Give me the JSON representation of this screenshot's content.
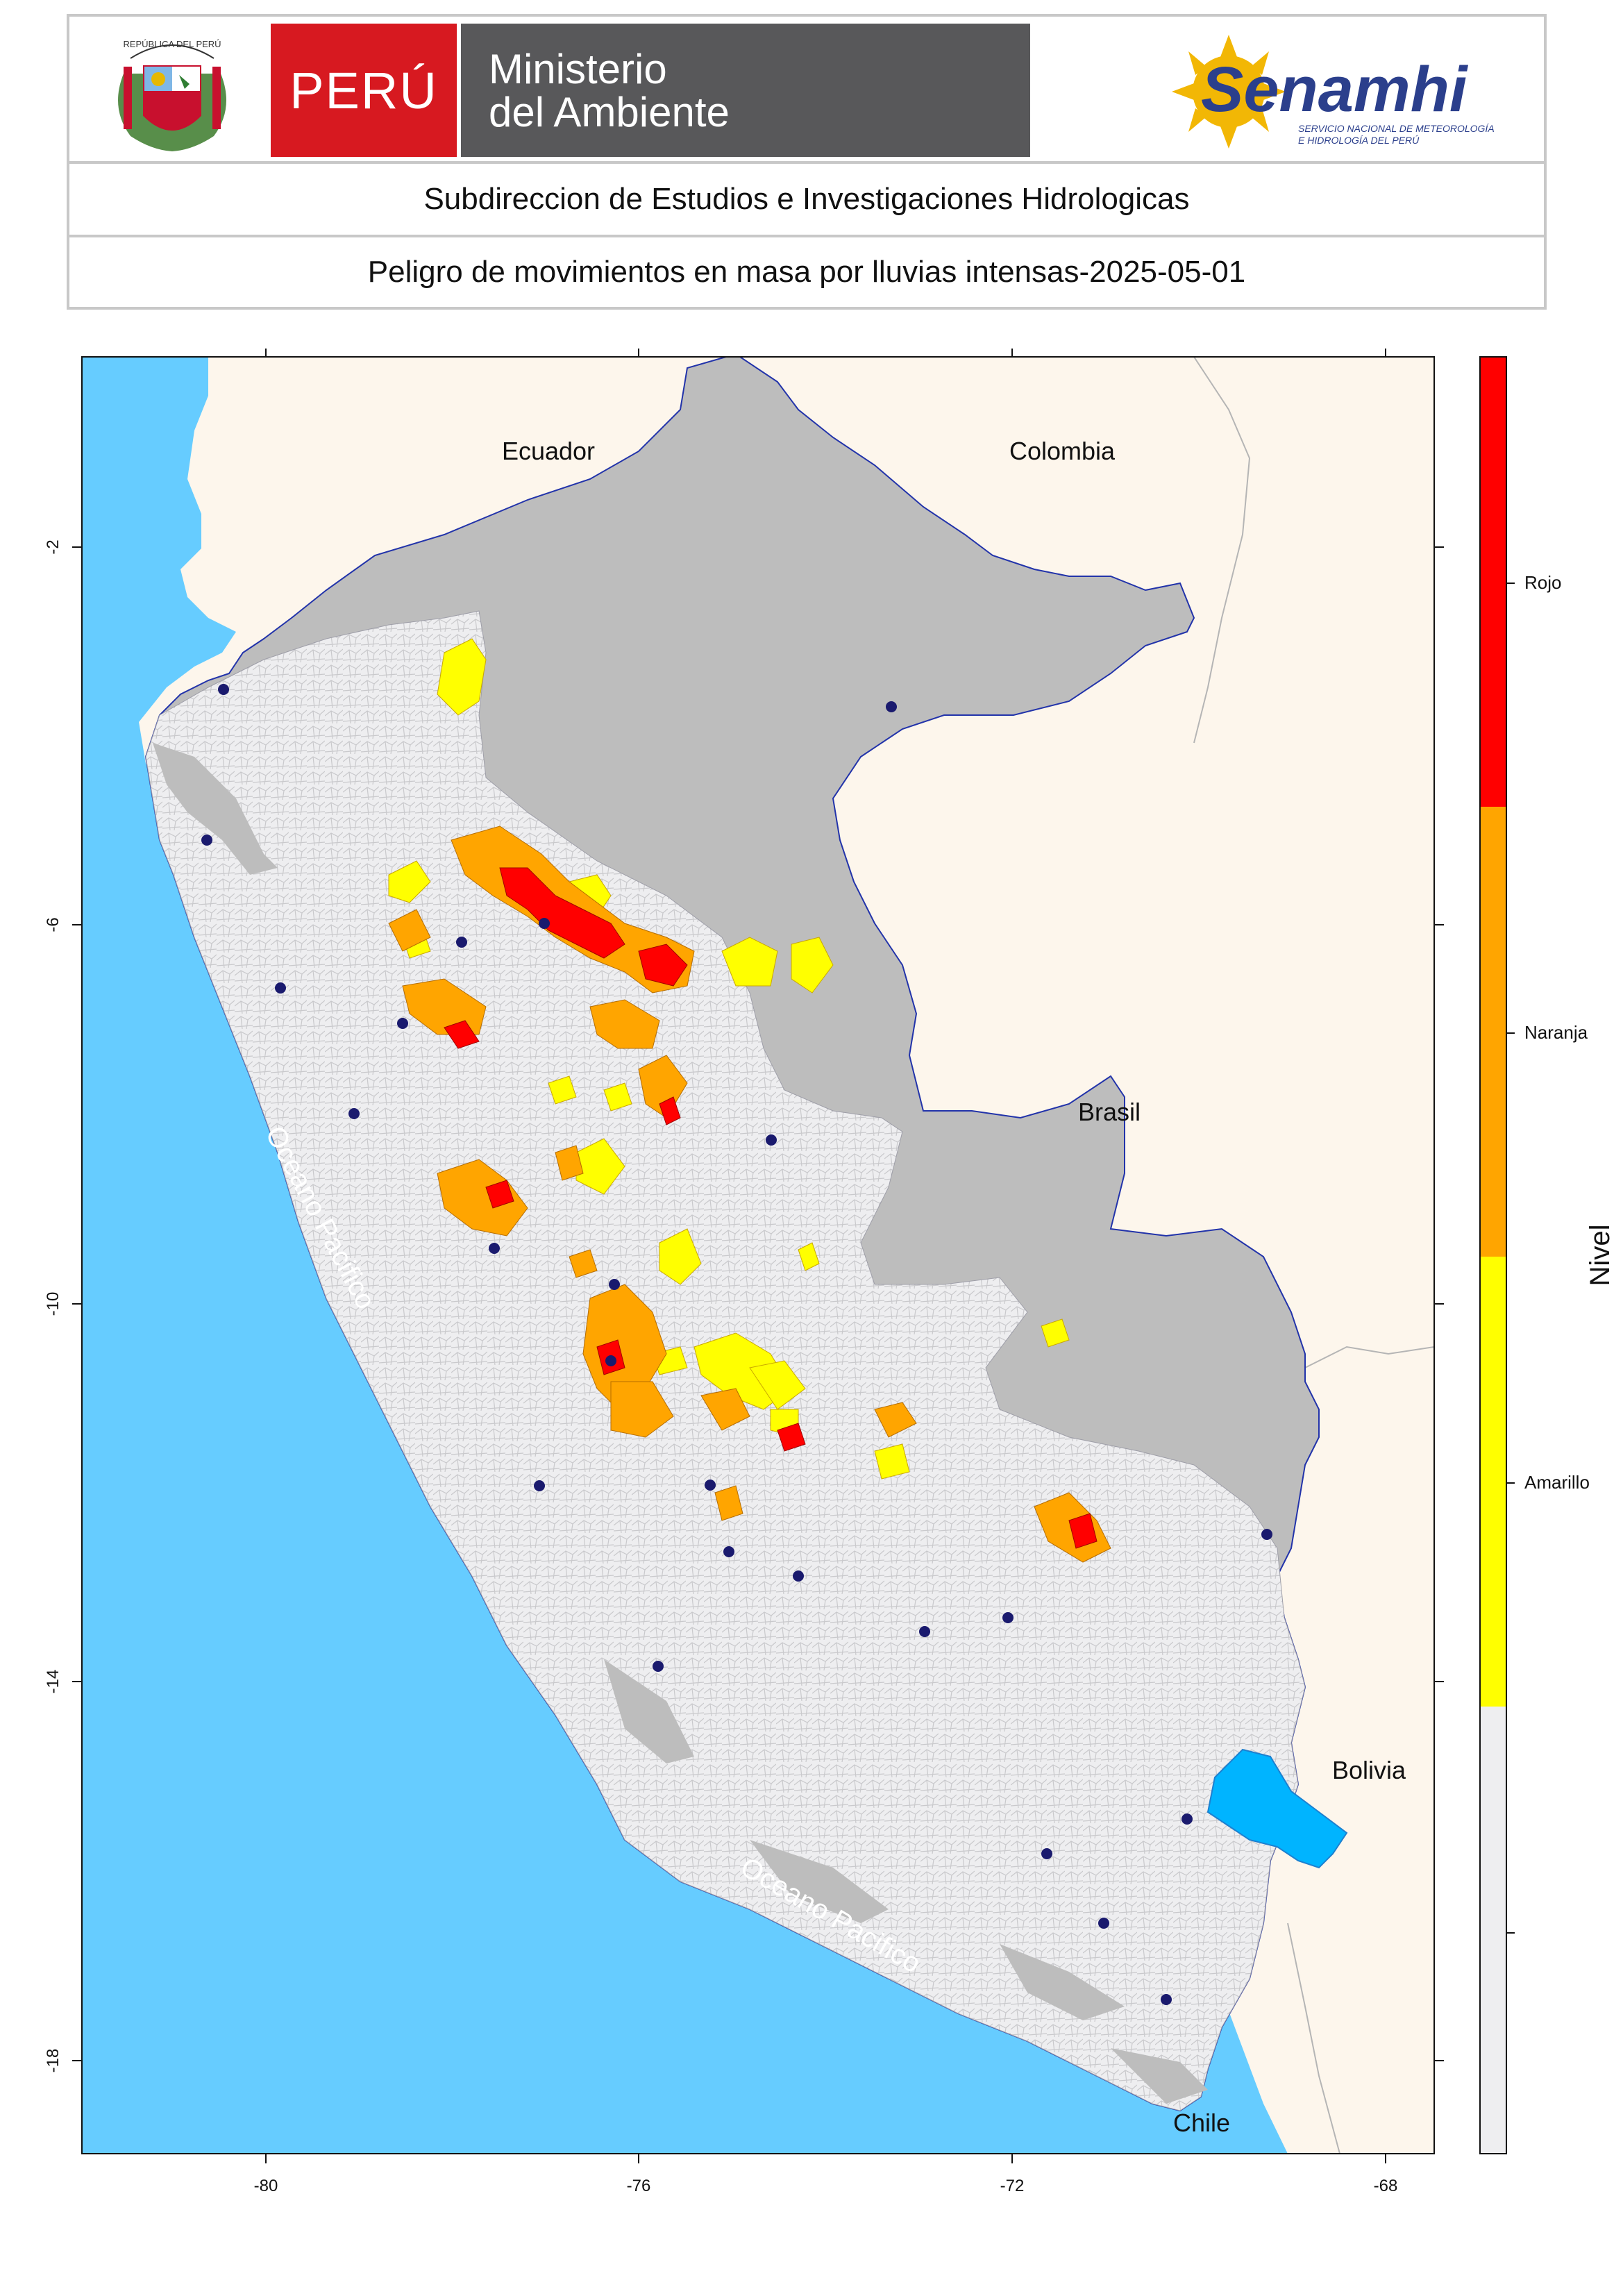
{
  "header": {
    "shield_text": "REPÚBLICA DEL PERÚ",
    "peru_label": "PERÚ",
    "ministry_line1": "Ministerio",
    "ministry_line2": "del Ambiente",
    "senamhi_name": "Senamhi",
    "senamhi_sub1": "SERVICIO NACIONAL DE METEOROLOGÍA",
    "senamhi_sub2": "E HIDROLOGÍA DEL PERÚ",
    "subtitle": "Subdireccion de Estudios e Investigaciones Hidrologicas",
    "title": "Peligro de movimientos en masa por lluvias intensas-2025-05-01"
  },
  "map": {
    "x_ticks": [
      "-80",
      "-76",
      "-72",
      "-68"
    ],
    "y_ticks": [
      "-2",
      "-6",
      "-10",
      "-14",
      "-18"
    ],
    "country_labels": [
      "Ecuador",
      "Colombia",
      "Brasil",
      "Bolivia",
      "Chile"
    ],
    "ocean_labels": [
      "Oceano Pacifico",
      "Oceano Pacifico"
    ],
    "colors": {
      "ocean": "#66ccff",
      "land_outside": "#fdf6ec",
      "peru_base": "#bdbdbd",
      "peru_light": "#eeeef0",
      "amarillo": "#ffff00",
      "naranja": "#ffa500",
      "rojo": "#ff0000",
      "lake": "#00b4ff",
      "city": "#1a1a6e"
    }
  },
  "legend": {
    "title": "Nivel",
    "levels": [
      {
        "label": "Rojo",
        "color": "#ff0000"
      },
      {
        "label": "Naranja",
        "color": "#ffa500"
      },
      {
        "label": "Amarillo",
        "color": "#ffff00"
      },
      {
        "label": "",
        "color": "#eeeef0"
      }
    ]
  }
}
